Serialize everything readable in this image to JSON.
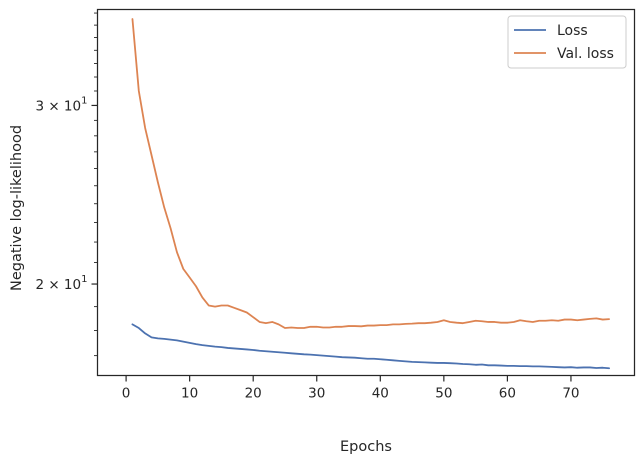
{
  "chart_data": {
    "type": "line",
    "title": "",
    "xlabel": "Epochs",
    "ylabel": "Negative log-likelihood",
    "xlim": [
      -4.5,
      80
    ],
    "xticks": [
      0,
      10,
      20,
      30,
      40,
      50,
      60,
      70
    ],
    "yscale": "log",
    "ylim": [
      16.25,
      37.3
    ],
    "yticks": [
      {
        "value": 20,
        "label_mantissa": "2",
        "label_base": "10",
        "label_exp": "1"
      },
      {
        "value": 30,
        "label_mantissa": "3",
        "label_base": "10",
        "label_exp": "1"
      }
    ],
    "grid": false,
    "legend": "upper-right",
    "x": [
      1,
      2,
      3,
      4,
      5,
      6,
      7,
      8,
      9,
      10,
      11,
      12,
      13,
      14,
      15,
      16,
      17,
      18,
      19,
      20,
      21,
      22,
      23,
      24,
      25,
      26,
      27,
      28,
      29,
      30,
      31,
      32,
      33,
      34,
      35,
      36,
      37,
      38,
      39,
      40,
      41,
      42,
      43,
      44,
      45,
      46,
      47,
      48,
      49,
      50,
      51,
      52,
      53,
      54,
      55,
      56,
      57,
      58,
      59,
      60,
      61,
      62,
      63,
      64,
      65,
      66,
      67,
      68,
      69,
      70,
      71,
      72,
      73,
      74,
      75,
      76
    ],
    "series": [
      {
        "name": "Loss",
        "color": "#4c72b0",
        "values": [
          18.25,
          18.1,
          17.88,
          17.72,
          17.68,
          17.66,
          17.63,
          17.6,
          17.55,
          17.5,
          17.45,
          17.41,
          17.38,
          17.35,
          17.33,
          17.3,
          17.28,
          17.26,
          17.24,
          17.22,
          17.19,
          17.17,
          17.15,
          17.13,
          17.11,
          17.09,
          17.07,
          17.05,
          17.04,
          17.02,
          17.0,
          16.98,
          16.96,
          16.94,
          16.93,
          16.92,
          16.9,
          16.88,
          16.88,
          16.86,
          16.84,
          16.82,
          16.8,
          16.78,
          16.76,
          16.75,
          16.74,
          16.73,
          16.72,
          16.72,
          16.71,
          16.7,
          16.68,
          16.67,
          16.65,
          16.66,
          16.63,
          16.63,
          16.62,
          16.61,
          16.61,
          16.6,
          16.6,
          16.59,
          16.59,
          16.58,
          16.57,
          16.56,
          16.55,
          16.56,
          16.54,
          16.55,
          16.55,
          16.53,
          16.54,
          16.52
        ]
      },
      {
        "name": "Val. loss",
        "color": "#dd8452",
        "values": [
          36.5,
          31.0,
          28.5,
          26.8,
          25.2,
          23.8,
          22.7,
          21.5,
          20.7,
          20.3,
          19.9,
          19.4,
          19.05,
          19.0,
          19.05,
          19.05,
          18.95,
          18.85,
          18.75,
          18.55,
          18.35,
          18.3,
          18.35,
          18.25,
          18.1,
          18.12,
          18.1,
          18.1,
          18.15,
          18.15,
          18.12,
          18.12,
          18.15,
          18.15,
          18.18,
          18.18,
          18.17,
          18.2,
          18.2,
          18.22,
          18.22,
          18.25,
          18.25,
          18.27,
          18.28,
          18.3,
          18.3,
          18.32,
          18.35,
          18.42,
          18.35,
          18.32,
          18.3,
          18.35,
          18.4,
          18.38,
          18.35,
          18.35,
          18.32,
          18.32,
          18.35,
          18.42,
          18.38,
          18.35,
          18.4,
          18.4,
          18.42,
          18.4,
          18.45,
          18.45,
          18.42,
          18.45,
          18.48,
          18.5,
          18.45,
          18.47
        ]
      }
    ]
  }
}
